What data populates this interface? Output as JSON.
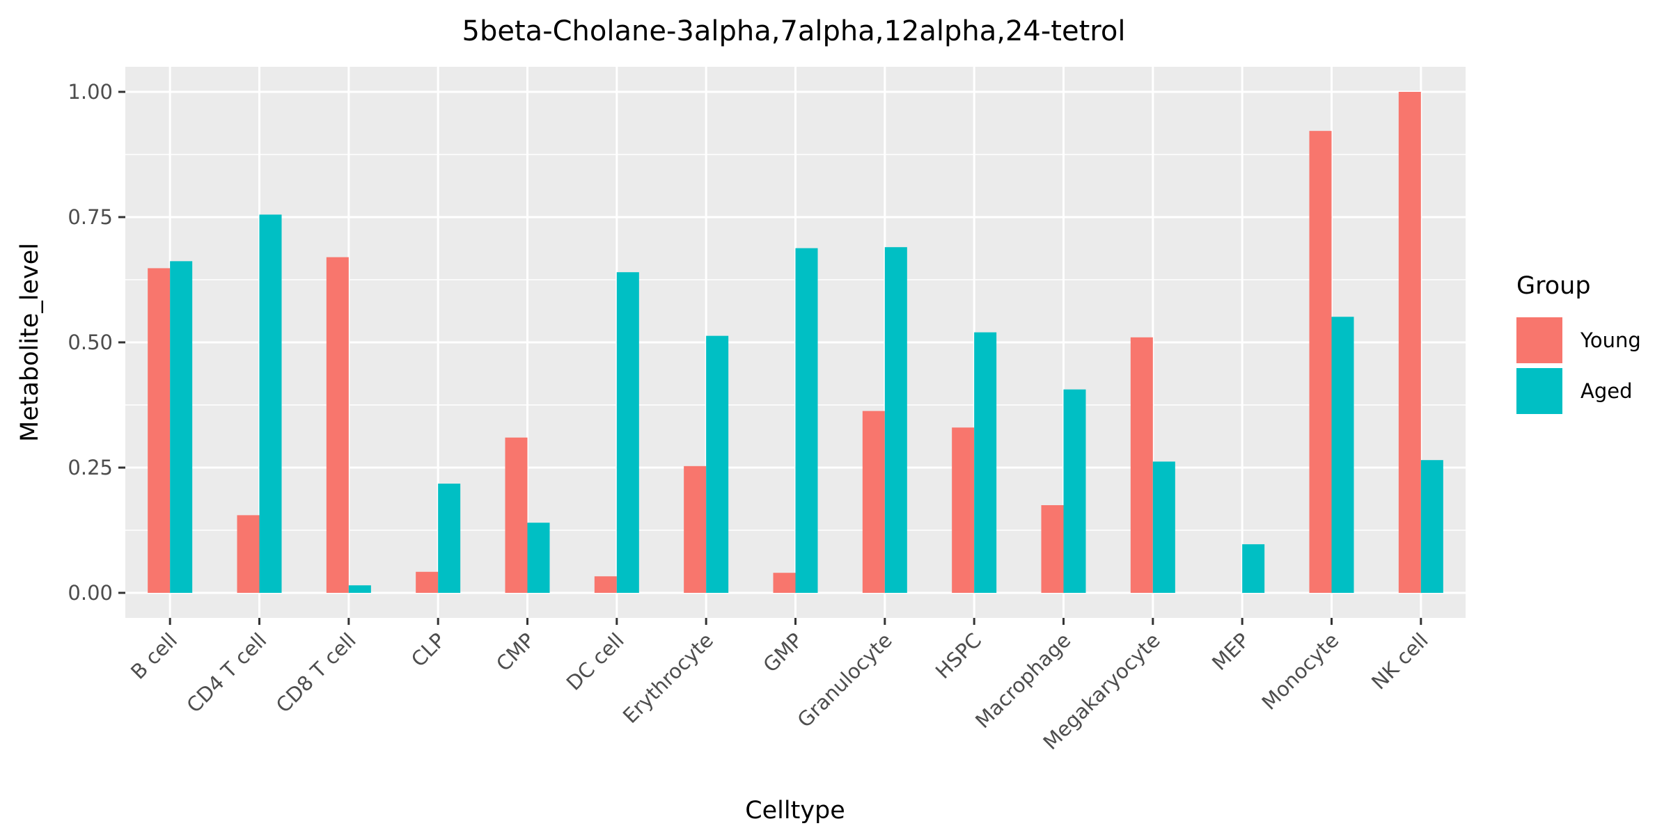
{
  "chart_data": {
    "type": "bar",
    "title": "5beta-Cholane-3alpha,7alpha,12alpha,24-tetrol",
    "xlabel": "Celltype",
    "ylabel": "Metabolite_level",
    "ylim": [
      -0.05,
      1.05
    ],
    "yticks": [
      0.0,
      0.25,
      0.5,
      0.75,
      1.0
    ],
    "ytick_labels": [
      "0.00",
      "0.25",
      "0.50",
      "0.75",
      "1.00"
    ],
    "grid": true,
    "legend": {
      "title": "Group",
      "position": "right"
    },
    "categories": [
      "B cell",
      "CD4 T cell",
      "CD8 T cell",
      "CLP",
      "CMP",
      "DC cell",
      "Erythrocyte",
      "GMP",
      "Granulocyte",
      "HSPC",
      "Macrophage",
      "Megakaryocyte",
      "MEP",
      "Monocyte",
      "NK cell"
    ],
    "series": [
      {
        "name": "Young",
        "color": "#F8766D",
        "values": [
          0.648,
          0.155,
          0.67,
          0.042,
          0.31,
          0.033,
          0.253,
          0.04,
          0.363,
          0.33,
          0.175,
          0.51,
          0.0,
          0.922,
          1.0
        ]
      },
      {
        "name": "Aged",
        "color": "#00BFC4",
        "values": [
          0.662,
          0.755,
          0.015,
          0.218,
          0.14,
          0.64,
          0.513,
          0.688,
          0.69,
          0.52,
          0.406,
          0.262,
          0.097,
          0.551,
          0.265
        ]
      }
    ]
  }
}
